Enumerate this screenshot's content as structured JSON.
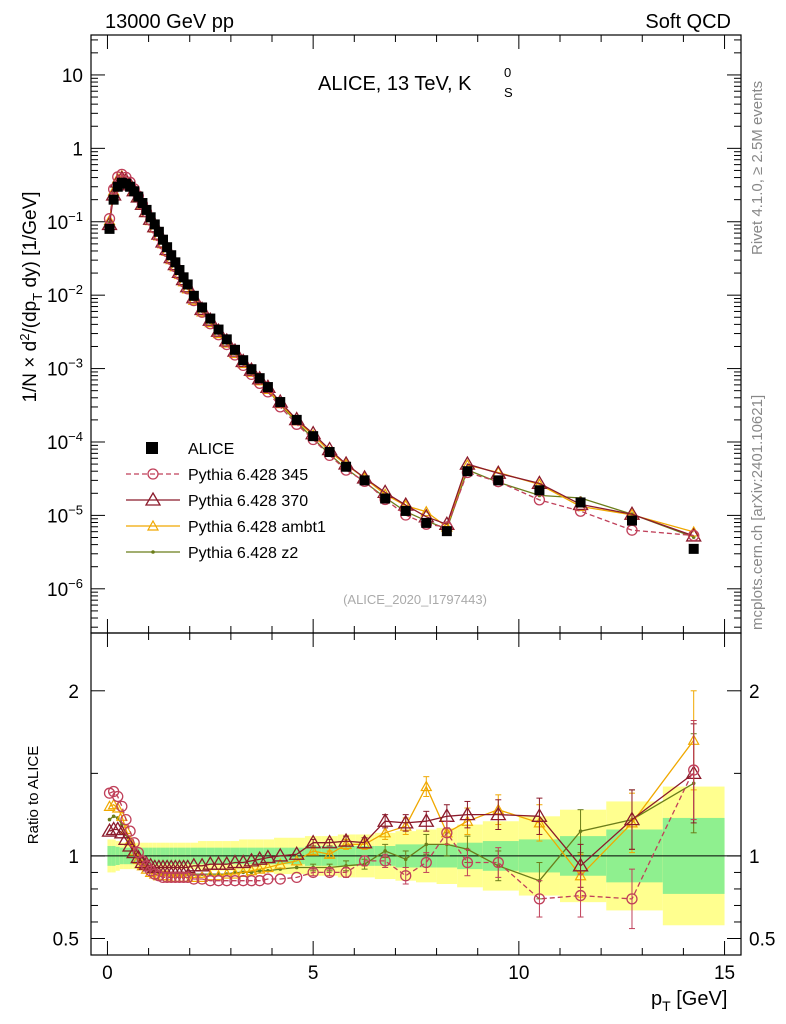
{
  "header": {
    "left": "13000 GeV pp",
    "right": "Soft QCD"
  },
  "side_labels": {
    "rivet": "Rivet 4.1.0, ≥ 2.5M events",
    "mcplots": "mcplots.cern.ch [arXiv:2401.10621]"
  },
  "colors": {
    "alice": "#000000",
    "p345": "#c0405a",
    "p370": "#8b1a2b",
    "ambt1": "#f0a800",
    "z2": "#6b7d1a",
    "band_inner": "#8ff08f",
    "band_outer": "#ffff8f"
  },
  "chart_data": {
    "title": "ALICE, 13 TeV, K",
    "title_super": "0",
    "title_sub": "S",
    "watermark": "(ALICE_2020_I1797443)",
    "ylabel_main": "1/N × d²/(dp_T dy) [1/GeV]",
    "ylabel_main_parts": {
      "a": "1/N × d",
      "b": "2",
      "c": "/(dp",
      "d": "T",
      "e": " dy) [1/GeV]"
    },
    "ylabel_ratio": "Ratio to ALICE",
    "xlabel": "p",
    "xlabel_sub": "T",
    "xlabel_unit": " [GeV]",
    "xlim": [
      -0.4,
      15.4
    ],
    "ylim_main": [
      2.5e-07,
      35
    ],
    "ylim_ratio": [
      0.4,
      2.35
    ],
    "xticks": [
      {
        "v": 0,
        "label": "0"
      },
      {
        "v": 5,
        "label": "5"
      },
      {
        "v": 10,
        "label": "10"
      },
      {
        "v": 15,
        "label": "15"
      }
    ],
    "yticks_main": [
      {
        "v": 10,
        "base": "10",
        "exp": ""
      },
      {
        "v": 1,
        "base": "1",
        "exp": ""
      },
      {
        "v": 0.1,
        "base": "10",
        "exp": "−1"
      },
      {
        "v": 0.01,
        "base": "10",
        "exp": "−2"
      },
      {
        "v": 0.001,
        "base": "10",
        "exp": "−3"
      },
      {
        "v": 0.0001,
        "base": "10",
        "exp": "−4"
      },
      {
        "v": 1e-05,
        "base": "10",
        "exp": "−5"
      },
      {
        "v": 1e-06,
        "base": "10",
        "exp": "−6"
      }
    ],
    "yticks_ratio": [
      {
        "v": 0.5,
        "label": "0.5"
      },
      {
        "v": 1,
        "label": "1"
      },
      {
        "v": 2,
        "label": "2"
      }
    ],
    "legend": [
      {
        "key": "alice",
        "label": "ALICE"
      },
      {
        "key": "p345",
        "label": "Pythia 6.428 345"
      },
      {
        "key": "p370",
        "label": "Pythia 6.428 370"
      },
      {
        "key": "ambt1",
        "label": "Pythia 6.428 ambt1"
      },
      {
        "key": "z2",
        "label": "Pythia 6.428 z2"
      }
    ],
    "x": [
      0.05,
      0.15,
      0.25,
      0.35,
      0.45,
      0.55,
      0.65,
      0.75,
      0.85,
      0.95,
      1.05,
      1.15,
      1.25,
      1.35,
      1.45,
      1.55,
      1.65,
      1.75,
      1.85,
      1.95,
      2.1,
      2.3,
      2.5,
      2.7,
      2.9,
      3.1,
      3.3,
      3.5,
      3.7,
      3.9,
      4.2,
      4.6,
      5.0,
      5.4,
      5.8,
      6.25,
      6.75,
      7.25,
      7.75,
      8.25,
      8.75,
      9.5,
      10.5,
      11.5,
      12.75,
      14.25
    ],
    "alice": [
      0.08,
      0.2,
      0.3,
      0.34,
      0.33,
      0.3,
      0.26,
      0.22,
      0.18,
      0.145,
      0.115,
      0.092,
      0.073,
      0.057,
      0.045,
      0.035,
      0.028,
      0.022,
      0.0175,
      0.014,
      0.0098,
      0.0068,
      0.0048,
      0.0034,
      0.0025,
      0.0018,
      0.0013,
      0.00098,
      0.00074,
      0.00056,
      0.00035,
      0.0002,
      0.00012,
      7.3e-05,
      4.6e-05,
      3e-05,
      1.7e-05,
      1.15e-05,
      7.9e-06,
      6.1e-06,
      4e-05,
      3e-05,
      2.2e-05,
      1.5e-05,
      8.5e-06,
      3.5e-06
    ],
    "ratio_band_inner": [
      0.06,
      0.06,
      0.055,
      0.05,
      0.05,
      0.05,
      0.05,
      0.05,
      0.05,
      0.05,
      0.05,
      0.05,
      0.05,
      0.05,
      0.05,
      0.05,
      0.05,
      0.05,
      0.05,
      0.05,
      0.05,
      0.05,
      0.05,
      0.05,
      0.05,
      0.05,
      0.05,
      0.05,
      0.05,
      0.05,
      0.05,
      0.05,
      0.06,
      0.06,
      0.06,
      0.06,
      0.06,
      0.07,
      0.07,
      0.07,
      0.08,
      0.09,
      0.1,
      0.12,
      0.16,
      0.23
    ],
    "ratio_band_outer": [
      0.1,
      0.1,
      0.09,
      0.08,
      0.08,
      0.08,
      0.08,
      0.08,
      0.08,
      0.08,
      0.08,
      0.08,
      0.08,
      0.08,
      0.08,
      0.08,
      0.08,
      0.08,
      0.08,
      0.08,
      0.08,
      0.09,
      0.09,
      0.09,
      0.09,
      0.09,
      0.1,
      0.1,
      0.1,
      0.1,
      0.11,
      0.11,
      0.12,
      0.12,
      0.13,
      0.13,
      0.14,
      0.15,
      0.16,
      0.17,
      0.19,
      0.21,
      0.24,
      0.28,
      0.33,
      0.42
    ],
    "series": [
      {
        "key": "p345",
        "name": "Pythia 6.428 345",
        "ratio": [
          1.38,
          1.39,
          1.36,
          1.3,
          1.22,
          1.15,
          1.08,
          1.02,
          0.97,
          0.94,
          0.91,
          0.89,
          0.88,
          0.87,
          0.87,
          0.87,
          0.87,
          0.87,
          0.87,
          0.87,
          0.86,
          0.86,
          0.85,
          0.85,
          0.85,
          0.85,
          0.85,
          0.85,
          0.85,
          0.86,
          0.86,
          0.87,
          0.9,
          0.9,
          0.9,
          0.97,
          0.97,
          0.88,
          0.96,
          1.14,
          0.96,
          0.96,
          0.74,
          0.76,
          0.74,
          1.52
        ],
        "err": [
          0.01,
          0.01,
          0.01,
          0.01,
          0.01,
          0.01,
          0.01,
          0.01,
          0.01,
          0.01,
          0.01,
          0.01,
          0.01,
          0.01,
          0.01,
          0.01,
          0.01,
          0.01,
          0.01,
          0.01,
          0.01,
          0.01,
          0.01,
          0.01,
          0.01,
          0.01,
          0.01,
          0.01,
          0.01,
          0.01,
          0.01,
          0.01,
          0.02,
          0.02,
          0.03,
          0.03,
          0.04,
          0.05,
          0.06,
          0.07,
          0.08,
          0.09,
          0.11,
          0.13,
          0.18,
          0.3
        ]
      },
      {
        "key": "p370",
        "name": "Pythia 6.428 370",
        "ratio": [
          1.15,
          1.16,
          1.16,
          1.14,
          1.1,
          1.06,
          1.02,
          0.99,
          0.96,
          0.95,
          0.94,
          0.93,
          0.93,
          0.93,
          0.93,
          0.93,
          0.93,
          0.93,
          0.93,
          0.93,
          0.94,
          0.94,
          0.95,
          0.95,
          0.95,
          0.96,
          0.96,
          0.97,
          0.98,
          0.99,
          1.0,
          1.01,
          1.08,
          1.08,
          1.09,
          1.08,
          1.21,
          1.2,
          1.21,
          1.24,
          1.25,
          1.25,
          1.24,
          0.94,
          1.22,
          1.5
        ],
        "err": [
          0.01,
          0.01,
          0.01,
          0.01,
          0.01,
          0.01,
          0.01,
          0.01,
          0.01,
          0.01,
          0.01,
          0.01,
          0.01,
          0.01,
          0.01,
          0.01,
          0.01,
          0.01,
          0.01,
          0.01,
          0.01,
          0.01,
          0.01,
          0.01,
          0.01,
          0.01,
          0.01,
          0.01,
          0.01,
          0.01,
          0.01,
          0.01,
          0.02,
          0.02,
          0.03,
          0.03,
          0.04,
          0.05,
          0.06,
          0.07,
          0.08,
          0.09,
          0.11,
          0.13,
          0.18,
          0.3
        ]
      },
      {
        "key": "ambt1",
        "name": "Pythia 6.428 ambt1",
        "ratio": [
          1.3,
          1.31,
          1.29,
          1.24,
          1.16,
          1.09,
          1.03,
          0.98,
          0.94,
          0.92,
          0.9,
          0.89,
          0.88,
          0.88,
          0.88,
          0.87,
          0.87,
          0.87,
          0.87,
          0.87,
          0.87,
          0.87,
          0.88,
          0.88,
          0.89,
          0.89,
          0.9,
          0.91,
          0.92,
          0.93,
          0.95,
          0.97,
          1.03,
          1.01,
          1.07,
          1.07,
          1.14,
          1.18,
          1.42,
          1.14,
          1.21,
          1.28,
          1.2,
          0.88,
          1.2,
          1.7
        ],
        "err": [
          0.01,
          0.01,
          0.01,
          0.01,
          0.01,
          0.01,
          0.01,
          0.01,
          0.01,
          0.01,
          0.01,
          0.01,
          0.01,
          0.01,
          0.01,
          0.01,
          0.01,
          0.01,
          0.01,
          0.01,
          0.01,
          0.01,
          0.01,
          0.01,
          0.01,
          0.01,
          0.01,
          0.01,
          0.01,
          0.01,
          0.01,
          0.01,
          0.02,
          0.02,
          0.03,
          0.03,
          0.04,
          0.05,
          0.06,
          0.07,
          0.08,
          0.09,
          0.11,
          0.13,
          0.18,
          0.3
        ]
      },
      {
        "key": "z2",
        "name": "Pythia 6.428 z2",
        "ratio": [
          1.22,
          1.24,
          1.23,
          1.19,
          1.13,
          1.07,
          1.02,
          0.98,
          0.95,
          0.93,
          0.92,
          0.91,
          0.9,
          0.89,
          0.89,
          0.89,
          0.89,
          0.89,
          0.89,
          0.89,
          0.89,
          0.89,
          0.89,
          0.89,
          0.89,
          0.9,
          0.9,
          0.9,
          0.91,
          0.91,
          0.92,
          0.93,
          0.93,
          0.93,
          0.94,
          0.95,
          1.03,
          0.98,
          1.07,
          1.07,
          1.04,
          0.94,
          0.85,
          1.15,
          1.22,
          1.44
        ],
        "err": [
          0.01,
          0.01,
          0.01,
          0.01,
          0.01,
          0.01,
          0.01,
          0.01,
          0.01,
          0.01,
          0.01,
          0.01,
          0.01,
          0.01,
          0.01,
          0.01,
          0.01,
          0.01,
          0.01,
          0.01,
          0.01,
          0.01,
          0.01,
          0.01,
          0.01,
          0.01,
          0.01,
          0.01,
          0.01,
          0.01,
          0.01,
          0.01,
          0.02,
          0.02,
          0.03,
          0.03,
          0.04,
          0.05,
          0.06,
          0.07,
          0.08,
          0.09,
          0.11,
          0.13,
          0.18,
          0.3
        ]
      }
    ]
  }
}
